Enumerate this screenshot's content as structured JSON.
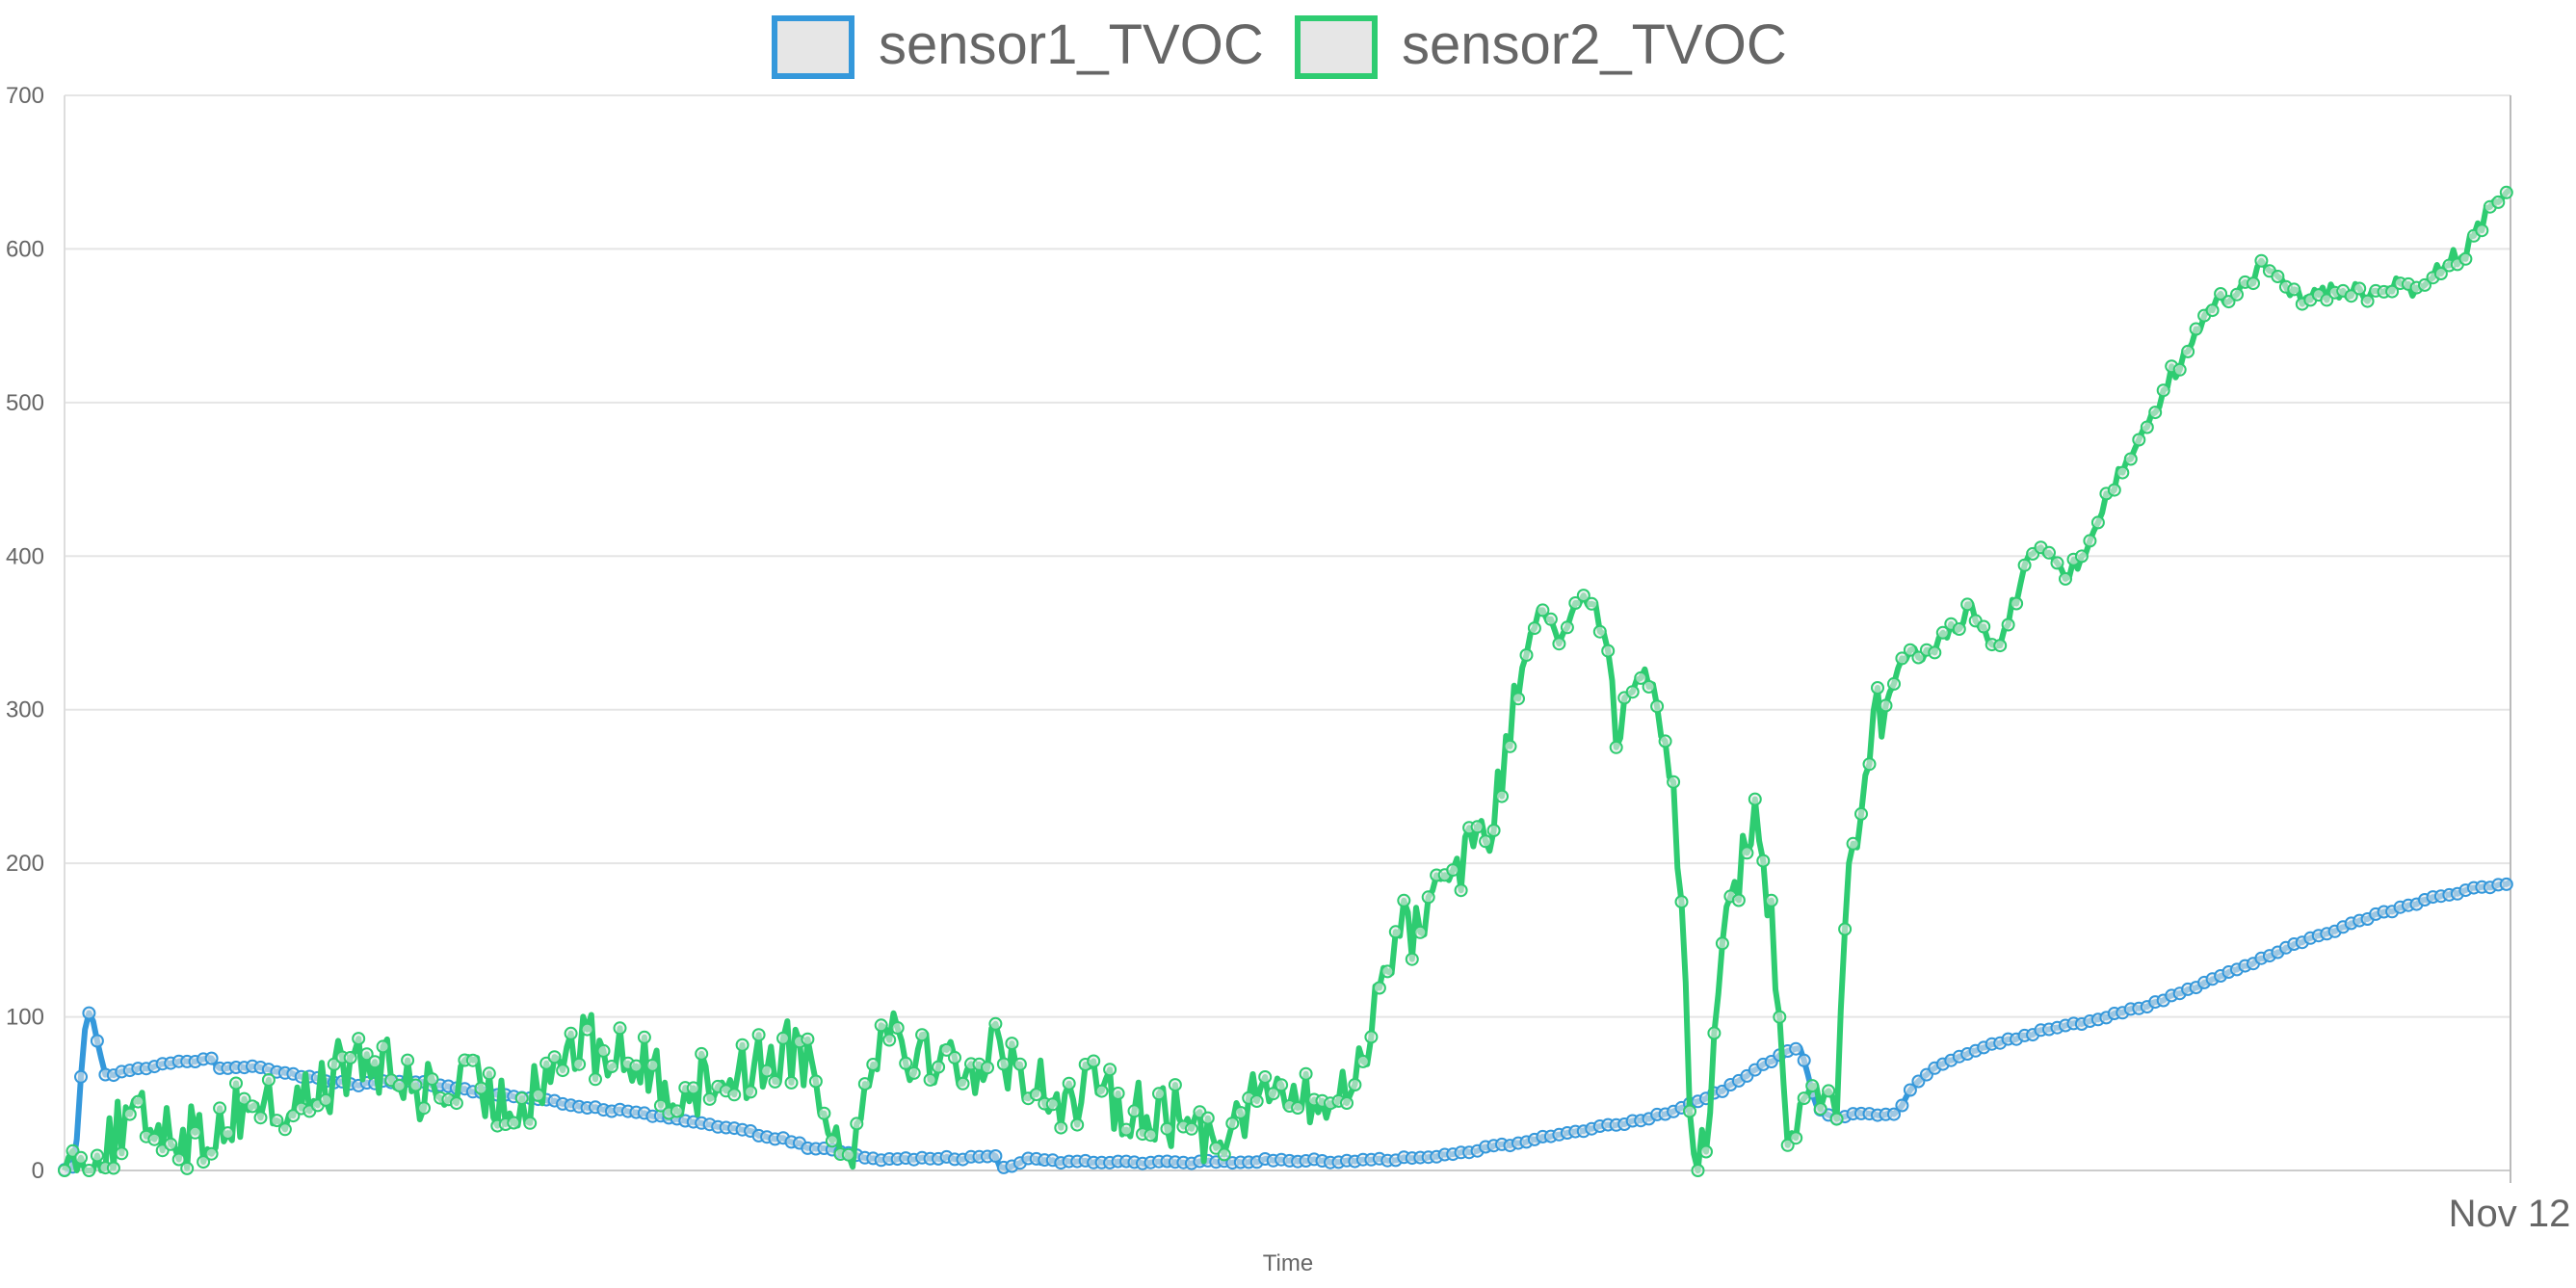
{
  "chart_data": {
    "type": "line",
    "xlabel": "Time",
    "ylabel": "",
    "ylim": [
      0,
      700
    ],
    "yticks": [
      0,
      100,
      200,
      300,
      400,
      500,
      600,
      700
    ],
    "xticks": [
      "Nov 12"
    ],
    "grid": true,
    "legend": "top-center",
    "colors": {
      "sensor1_TVOC": "#3498db",
      "sensor2_TVOC": "#2ecc71"
    },
    "point_count": 600,
    "series": [
      {
        "name": "sensor1_TVOC",
        "keypoints": [
          [
            0,
            0
          ],
          [
            4,
            2
          ],
          [
            6,
            28
          ],
          [
            8,
            80
          ],
          [
            10,
            103
          ],
          [
            12,
            103
          ],
          [
            14,
            88
          ],
          [
            18,
            62
          ],
          [
            30,
            65
          ],
          [
            48,
            70
          ],
          [
            60,
            72
          ],
          [
            64,
            74
          ],
          [
            66,
            72
          ],
          [
            68,
            66
          ],
          [
            75,
            68
          ],
          [
            90,
            66
          ],
          [
            105,
            62
          ],
          [
            120,
            58
          ],
          [
            130,
            56
          ],
          [
            140,
            58
          ],
          [
            160,
            57
          ],
          [
            180,
            52
          ],
          [
            220,
            44
          ],
          [
            260,
            36
          ],
          [
            300,
            26
          ],
          [
            320,
            20
          ],
          [
            330,
            15
          ],
          [
            345,
            12
          ],
          [
            355,
            8
          ],
          [
            365,
            7
          ],
          [
            380,
            8
          ],
          [
            405,
            8
          ],
          [
            410,
            10
          ],
          [
            413,
            10
          ],
          [
            415,
            2
          ],
          [
            419,
            2
          ],
          [
            428,
            9
          ],
          [
            432,
            6
          ],
          [
            470,
            5
          ],
          [
            500,
            5
          ],
          [
            540,
            7
          ],
          [
            560,
            6
          ],
          [
            580,
            7
          ],
          [
            600,
            8
          ],
          [
            620,
            12
          ],
          [
            645,
            18
          ],
          [
            668,
            25
          ],
          [
            690,
            30
          ],
          [
            705,
            35
          ],
          [
            720,
            42
          ],
          [
            735,
            52
          ],
          [
            750,
            65
          ],
          [
            758,
            72
          ],
          [
            765,
            78
          ],
          [
            768,
            80
          ],
          [
            770,
            79
          ],
          [
            773,
            65
          ],
          [
            776,
            45
          ],
          [
            780,
            38
          ],
          [
            785,
            34
          ],
          [
            790,
            35
          ],
          [
            794,
            38
          ],
          [
            800,
            38
          ],
          [
            806,
            36
          ],
          [
            813,
            38
          ],
          [
            815,
            42
          ],
          [
            820,
            55
          ],
          [
            830,
            68
          ],
          [
            850,
            80
          ],
          [
            875,
            90
          ],
          [
            900,
            98
          ],
          [
            925,
            108
          ],
          [
            950,
            122
          ],
          [
            975,
            138
          ],
          [
            1000,
            153
          ],
          [
            1025,
            166
          ],
          [
            1050,
            177
          ],
          [
            1070,
            184
          ],
          [
            1080,
            186
          ],
          [
            1085,
            188
          ]
        ]
      },
      {
        "name": "sensor2_TVOC",
        "keypoints": [
          [
            0,
            0
          ],
          [
            10,
            2
          ],
          [
            20,
            10
          ],
          [
            30,
            25
          ],
          [
            40,
            30
          ],
          [
            50,
            32
          ],
          [
            60,
            28
          ],
          [
            70,
            20
          ],
          [
            80,
            25
          ],
          [
            90,
            35
          ],
          [
            100,
            45
          ],
          [
            110,
            42
          ],
          [
            120,
            38
          ],
          [
            130,
            45
          ],
          [
            140,
            55
          ],
          [
            150,
            65
          ],
          [
            160,
            70
          ],
          [
            170,
            68
          ],
          [
            180,
            60
          ],
          [
            190,
            55
          ],
          [
            200,
            50
          ],
          [
            210,
            52
          ],
          [
            220,
            55
          ],
          [
            230,
            50
          ],
          [
            240,
            40
          ],
          [
            250,
            48
          ],
          [
            260,
            62
          ],
          [
            270,
            75
          ],
          [
            280,
            82
          ],
          [
            290,
            78
          ],
          [
            300,
            75
          ],
          [
            310,
            70
          ],
          [
            320,
            62
          ],
          [
            330,
            55
          ],
          [
            340,
            52
          ],
          [
            350,
            58
          ],
          [
            360,
            62
          ],
          [
            370,
            66
          ],
          [
            380,
            70
          ],
          [
            390,
            78
          ],
          [
            400,
            80
          ],
          [
            410,
            60
          ],
          [
            420,
            20
          ],
          [
            425,
            0
          ],
          [
            440,
            85
          ],
          [
            450,
            95
          ],
          [
            460,
            80
          ],
          [
            470,
            75
          ],
          [
            480,
            70
          ],
          [
            490,
            68
          ],
          [
            500,
            72
          ],
          [
            510,
            78
          ],
          [
            520,
            65
          ],
          [
            530,
            55
          ],
          [
            540,
            50
          ],
          [
            550,
            45
          ],
          [
            560,
            50
          ],
          [
            570,
            48
          ],
          [
            580,
            42
          ],
          [
            590,
            40
          ],
          [
            600,
            35
          ],
          [
            610,
            32
          ],
          [
            620,
            25
          ],
          [
            630,
            30
          ],
          [
            640,
            42
          ],
          [
            650,
            50
          ],
          [
            660,
            52
          ],
          [
            670,
            45
          ],
          [
            680,
            40
          ],
          [
            690,
            45
          ],
          [
            700,
            55
          ],
          [
            705,
            75
          ],
          [
            710,
            95
          ],
          [
            715,
            120
          ],
          [
            720,
            142
          ],
          [
            725,
            158
          ],
          [
            730,
            165
          ],
          [
            735,
            150
          ],
          [
            740,
            172
          ],
          [
            745,
            190
          ],
          [
            750,
            198
          ],
          [
            755,
            192
          ],
          [
            760,
            205
          ],
          [
            765,
            215
          ],
          [
            770,
            210
          ],
          [
            775,
            225
          ],
          [
            780,
            240
          ],
          [
            785,
            270
          ],
          [
            790,
            310
          ],
          [
            795,
            340
          ],
          [
            800,
            358
          ],
          [
            805,
            362
          ],
          [
            810,
            352
          ],
          [
            815,
            345
          ],
          [
            820,
            360
          ],
          [
            825,
            375
          ],
          [
            830,
            370
          ],
          [
            835,
            355
          ],
          [
            840,
            338
          ],
          [
            845,
            280
          ],
          [
            850,
            305
          ],
          [
            855,
            320
          ],
          [
            860,
            325
          ],
          [
            865,
            310
          ],
          [
            870,
            290
          ],
          [
            875,
            250
          ],
          [
            878,
            190
          ],
          [
            882,
            90
          ],
          [
            885,
            30
          ],
          [
            888,
            0
          ],
          [
            892,
            15
          ],
          [
            896,
            70
          ],
          [
            900,
            150
          ],
          [
            905,
            185
          ],
          [
            910,
            195
          ],
          [
            915,
            200
          ],
          [
            920,
            230
          ],
          [
            925,
            180
          ],
          [
            930,
            140
          ],
          [
            935,
            60
          ],
          [
            940,
            5
          ],
          [
            945,
            60
          ],
          [
            950,
            55
          ],
          [
            955,
            50
          ],
          [
            960,
            45
          ],
          [
            963,
            20
          ],
          [
            966,
            120
          ],
          [
            970,
            200
          ],
          [
            975,
            230
          ],
          [
            980,
            262
          ],
          [
            985,
            290
          ],
          [
            990,
            305
          ],
          [
            995,
            320
          ],
          [
            1000,
            332
          ],
          [
            1005,
            338
          ],
          [
            1010,
            335
          ],
          [
            1015,
            340
          ],
          [
            1020,
            342
          ],
          [
            1025,
            352
          ],
          [
            1030,
            358
          ],
          [
            1035,
            365
          ],
          [
            1040,
            360
          ],
          [
            1045,
            350
          ],
          [
            1050,
            345
          ],
          [
            1055,
            350
          ],
          [
            1060,
            370
          ],
          [
            1065,
            385
          ],
          [
            1070,
            405
          ],
          [
            1075,
            402
          ],
          [
            1080,
            398
          ],
          [
            1085,
            392
          ],
          [
            1090,
            388
          ],
          [
            1095,
            398
          ],
          [
            1100,
            410
          ],
          [
            1105,
            422
          ],
          [
            1110,
            435
          ],
          [
            1115,
            448
          ],
          [
            1120,
            460
          ],
          [
            1125,
            472
          ],
          [
            1130,
            482
          ],
          [
            1135,
            492
          ],
          [
            1140,
            505
          ],
          [
            1145,
            518
          ],
          [
            1150,
            525
          ],
          [
            1155,
            530
          ],
          [
            1160,
            545
          ],
          [
            1165,
            560
          ],
          [
            1170,
            565
          ],
          [
            1175,
            568
          ],
          [
            1180,
            572
          ],
          [
            1185,
            575
          ],
          [
            1190,
            582
          ],
          [
            1195,
            588
          ],
          [
            1200,
            590
          ],
          [
            1205,
            585
          ],
          [
            1210,
            575
          ],
          [
            1215,
            570
          ],
          [
            1220,
            568
          ],
          [
            1225,
            570
          ],
          [
            1230,
            572
          ],
          [
            1235,
            570
          ],
          [
            1240,
            572
          ],
          [
            1245,
            574
          ],
          [
            1250,
            572
          ],
          [
            1255,
            568
          ],
          [
            1260,
            570
          ],
          [
            1265,
            575
          ],
          [
            1270,
            578
          ],
          [
            1275,
            575
          ],
          [
            1280,
            572
          ],
          [
            1285,
            580
          ],
          [
            1290,
            585
          ],
          [
            1295,
            590
          ],
          [
            1300,
            595
          ],
          [
            1305,
            598
          ],
          [
            1310,
            605
          ],
          [
            1315,
            618
          ],
          [
            1320,
            628
          ],
          [
            1325,
            636
          ],
          [
            1330,
            642
          ]
        ]
      }
    ]
  }
}
